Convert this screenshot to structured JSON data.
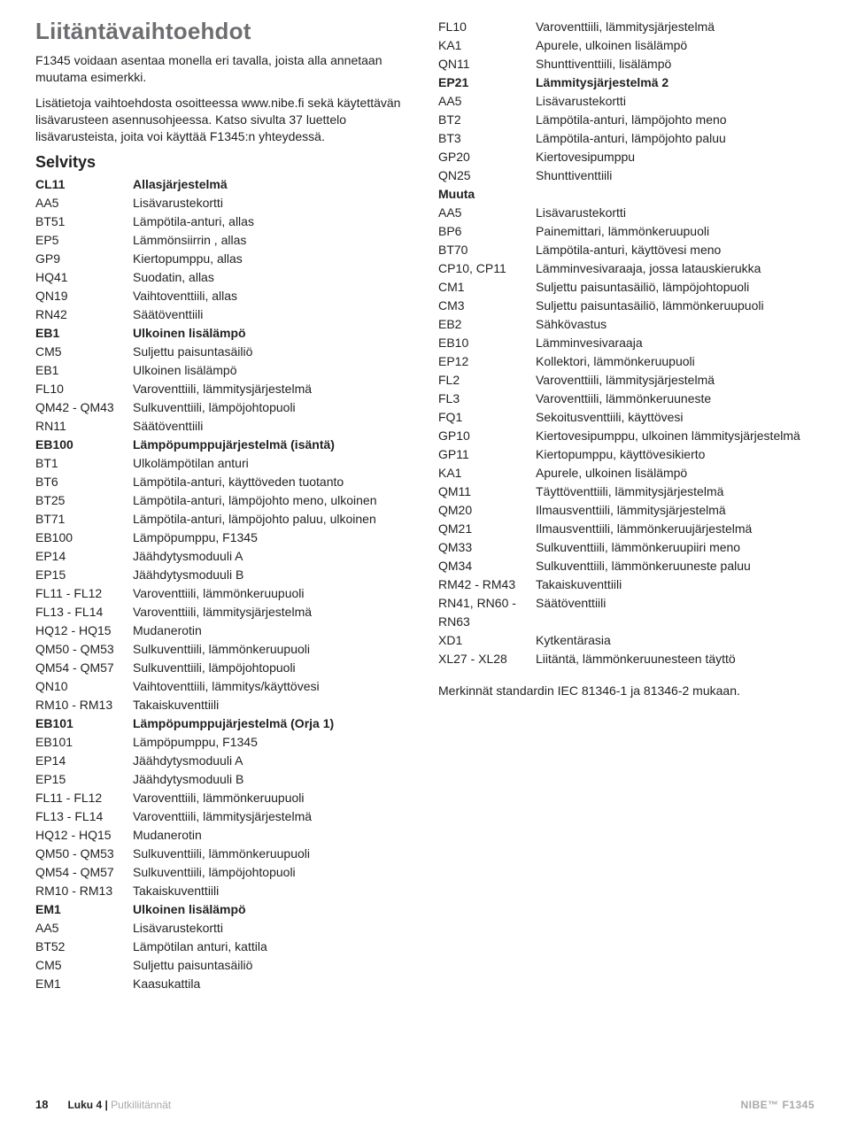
{
  "title": "Liitäntävaihtoehdot",
  "intro1": "F1345 voidaan asentaa monella eri tavalla, joista alla annetaan muutama esimerkki.",
  "intro2": "Lisätietoja vaihtoehdosta osoitteessa www.nibe.fi sekä käytettävän lisävarusteen asennusohjeessa. Katso sivulta 37 luettelo lisävarusteista, joita voi käyttää F1345:n yhteydessä.",
  "selvitys_heading": "Selvitys",
  "col1_rows": [
    {
      "code": "CL11",
      "desc": "Allasjärjestelmä",
      "bold": true
    },
    {
      "code": "AA5",
      "desc": "Lisävarustekortti"
    },
    {
      "code": "BT51",
      "desc": "Lämpötila-anturi, allas"
    },
    {
      "code": "EP5",
      "desc": "Lämmönsiirrin , allas"
    },
    {
      "code": "GP9",
      "desc": "Kiertopumppu, allas"
    },
    {
      "code": "HQ41",
      "desc": "Suodatin, allas"
    },
    {
      "code": "QN19",
      "desc": "Vaihtoventtiili, allas"
    },
    {
      "code": "RN42",
      "desc": "Säätöventtiili"
    },
    {
      "code": "EB1",
      "desc": "Ulkoinen lisälämpö",
      "bold": true
    },
    {
      "code": "CM5",
      "desc": "Suljettu paisuntasäiliö"
    },
    {
      "code": "EB1",
      "desc": "Ulkoinen lisälämpö"
    },
    {
      "code": "FL10",
      "desc": "Varoventtiili, lämmitysjärjestelmä"
    },
    {
      "code": "QM42 - QM43",
      "desc": "Sulkuventtiili, lämpöjohtopuoli"
    },
    {
      "code": "RN11",
      "desc": "Säätöventtiili"
    },
    {
      "code": "EB100",
      "desc": "Lämpöpumppujärjestelmä (isäntä)",
      "bold": true
    },
    {
      "code": "BT1",
      "desc": "Ulkolämpötilan anturi"
    },
    {
      "code": "BT6",
      "desc": "Lämpötila-anturi, käyttöveden tuotanto"
    },
    {
      "code": "BT25",
      "desc": "Lämpötila-anturi, lämpöjohto meno, ulkoinen"
    },
    {
      "code": "BT71",
      "desc": "Lämpötila-anturi, lämpöjohto paluu, ulkoinen"
    },
    {
      "code": "EB100",
      "desc": "Lämpöpumppu, F1345"
    },
    {
      "code": "EP14",
      "desc": "Jäähdytysmoduuli A"
    },
    {
      "code": "EP15",
      "desc": "Jäähdytysmoduuli B"
    },
    {
      "code": "FL11 - FL12",
      "desc": "Varoventtiili, lämmönkeruupuoli"
    },
    {
      "code": "FL13 - FL14",
      "desc": "Varoventtiili, lämmitysjärjestelmä"
    },
    {
      "code": "HQ12 - HQ15",
      "desc": "Mudanerotin"
    },
    {
      "code": "QM50 - QM53",
      "desc": "Sulkuventtiili, lämmönkeruupuoli"
    },
    {
      "code": "QM54 - QM57",
      "desc": "Sulkuventtiili, lämpöjohtopuoli"
    },
    {
      "code": "QN10",
      "desc": "Vaihtoventtiili, lämmitys/käyttövesi"
    },
    {
      "code": "RM10 - RM13",
      "desc": "Takaiskuventtiili"
    },
    {
      "code": "EB101",
      "desc": "Lämpöpumppujärjestelmä (Orja 1)",
      "bold": true
    },
    {
      "code": "EB101",
      "desc": "Lämpöpumppu, F1345"
    },
    {
      "code": "EP14",
      "desc": "Jäähdytysmoduuli A"
    },
    {
      "code": "EP15",
      "desc": "Jäähdytysmoduuli B"
    },
    {
      "code": "FL11 - FL12",
      "desc": "Varoventtiili, lämmönkeruupuoli"
    },
    {
      "code": "FL13 - FL14",
      "desc": "Varoventtiili, lämmitysjärjestelmä"
    },
    {
      "code": "HQ12 - HQ15",
      "desc": "Mudanerotin"
    },
    {
      "code": "QM50 - QM53",
      "desc": "Sulkuventtiili, lämmönkeruupuoli"
    },
    {
      "code": "QM54 - QM57",
      "desc": "Sulkuventtiili, lämpöjohtopuoli"
    },
    {
      "code": "RM10 - RM13",
      "desc": "Takaiskuventtiili"
    },
    {
      "code": "EM1",
      "desc": "Ulkoinen lisälämpö",
      "bold": true
    },
    {
      "code": "AA5",
      "desc": "Lisävarustekortti"
    },
    {
      "code": "BT52",
      "desc": "Lämpötilan anturi, kattila"
    },
    {
      "code": "CM5",
      "desc": "Suljettu paisuntasäiliö"
    },
    {
      "code": "EM1",
      "desc": "Kaasukattila"
    }
  ],
  "col2_rows": [
    {
      "code": "FL10",
      "desc": "Varoventtiili, lämmitysjärjestelmä"
    },
    {
      "code": "KA1",
      "desc": "Apurele, ulkoinen lisälämpö"
    },
    {
      "code": "QN11",
      "desc": "Shunttiventtiili, lisälämpö"
    },
    {
      "code": "EP21",
      "desc": "Lämmitysjärjestelmä 2",
      "bold": true
    },
    {
      "code": "AA5",
      "desc": "Lisävarustekortti"
    },
    {
      "code": "BT2",
      "desc": "Lämpötila-anturi, lämpöjohto meno"
    },
    {
      "code": "BT3",
      "desc": "Lämpötila-anturi, lämpöjohto paluu"
    },
    {
      "code": "GP20",
      "desc": "Kiertovesipumppu"
    },
    {
      "code": "QN25",
      "desc": "Shunttiventtiili"
    },
    {
      "code": "Muuta",
      "desc": "",
      "bold": true
    },
    {
      "code": "AA5",
      "desc": "Lisävarustekortti"
    },
    {
      "code": "BP6",
      "desc": "Painemittari, lämmönkeruupuoli"
    },
    {
      "code": "BT70",
      "desc": "Lämpötila-anturi, käyttövesi meno"
    },
    {
      "code": "CP10, CP11",
      "desc": "Lämminvesivaraaja, jossa latauskierukka"
    },
    {
      "code": "CM1",
      "desc": "Suljettu paisuntasäiliö, lämpöjohtopuoli"
    },
    {
      "code": "CM3",
      "desc": "Suljettu paisuntasäiliö, lämmönkeruupuoli"
    },
    {
      "code": "EB2",
      "desc": "Sähkövastus"
    },
    {
      "code": "EB10",
      "desc": "Lämminvesivaraaja"
    },
    {
      "code": "EP12",
      "desc": "Kollektori, lämmönkeruupuoli"
    },
    {
      "code": "FL2",
      "desc": "Varoventtiili, lämmitysjärjestelmä"
    },
    {
      "code": "FL3",
      "desc": "Varoventtiili, lämmönkeruuneste"
    },
    {
      "code": "FQ1",
      "desc": "Sekoitusventtiili, käyttövesi"
    },
    {
      "code": "GP10",
      "desc": "Kiertovesipumppu, ulkoinen lämmitysjärjestelmä"
    },
    {
      "code": "GP11",
      "desc": "Kiertopumppu, käyttövesikierto"
    },
    {
      "code": "KA1",
      "desc": "Apurele, ulkoinen lisälämpö"
    },
    {
      "code": "QM11",
      "desc": "Täyttöventtiili, lämmitysjärjestelmä"
    },
    {
      "code": "QM20",
      "desc": "Ilmausventtiili, lämmitysjärjestelmä"
    },
    {
      "code": "QM21",
      "desc": "Ilmausventtiili, lämmönkeruujärjestelmä"
    },
    {
      "code": "QM33",
      "desc": "Sulkuventtiili, lämmönkeruupiiri meno"
    },
    {
      "code": "QM34",
      "desc": "Sulkuventtiili, lämmönkeruuneste paluu"
    },
    {
      "code": "RM42 - RM43",
      "desc": "Takaiskuventtiili"
    },
    {
      "code": "RN41, RN60 - RN63",
      "desc": "Säätöventtiili"
    },
    {
      "code": "XD1",
      "desc": "Kytkentärasia"
    },
    {
      "code": "XL27 - XL28",
      "desc": "Liitäntä, lämmönkeruunesteen täyttö"
    }
  ],
  "note": "Merkinnät standardin IEC 81346-1 ja 81346-2 mukaan.",
  "footer": {
    "page": "18",
    "chapter": "Luku 4 | ",
    "subtitle": "Putkiliitännät",
    "product": "NIBE™ F1345"
  }
}
